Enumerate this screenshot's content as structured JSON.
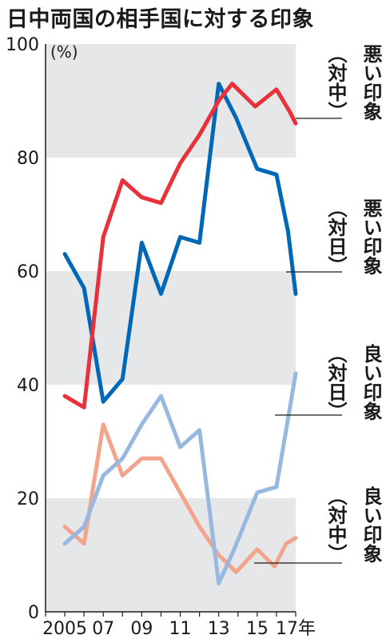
{
  "title": "日中両国の相手国に対する印象",
  "chart_data": {
    "type": "line",
    "title": "日中両国の相手国に対する印象",
    "unit": "(%)",
    "ylim": [
      0,
      100
    ],
    "yticks": [
      0,
      20,
      40,
      60,
      80,
      100
    ],
    "xlim": [
      2004,
      2017
    ],
    "x": [
      2005,
      2006,
      2007,
      2008,
      2009,
      2010,
      2011,
      2012,
      2013,
      2014,
      2015,
      2016,
      2017
    ],
    "xtick_labels": [
      {
        "x": 2005,
        "label": "2005"
      },
      {
        "x": 2007,
        "label": "07"
      },
      {
        "x": 2009,
        "label": "09"
      },
      {
        "x": 2011,
        "label": "11"
      },
      {
        "x": 2013,
        "label": "13"
      },
      {
        "x": 2015,
        "label": "15"
      },
      {
        "x": 2017,
        "label": "17年"
      }
    ],
    "grid": "alternating gray bands",
    "series": [
      {
        "name": "悪い印象（対中）",
        "key": "bad_china",
        "color": "#e8313a",
        "values": [
          38,
          36,
          66,
          76,
          73,
          72,
          79,
          84,
          90,
          93,
          89,
          92,
          88,
          86
        ],
        "x": [
          2005,
          2006,
          2007,
          2008,
          2009,
          2010,
          2011,
          2012,
          2013,
          2013.7,
          2014.9,
          2016,
          2016.7,
          2017
        ]
      },
      {
        "name": "悪い印象（対日）",
        "key": "bad_japan",
        "color": "#0068b7",
        "values": [
          63,
          57,
          37,
          41,
          65,
          56,
          66,
          65,
          93,
          87,
          78,
          77,
          67,
          56
        ],
        "x": [
          2005,
          2006,
          2007,
          2008,
          2009,
          2010,
          2011,
          2012,
          2013,
          2013.9,
          2015,
          2016,
          2016.6,
          2017
        ]
      },
      {
        "name": "良い印象（対日）",
        "key": "good_japan",
        "color": "#99b8e0",
        "values": [
          12,
          15,
          24,
          27,
          33,
          38,
          29,
          32,
          5,
          11,
          21,
          22,
          32,
          42
        ],
        "x": [
          2005,
          2006,
          2007,
          2008,
          2009,
          2010,
          2011,
          2012,
          2013,
          2013.8,
          2015,
          2016,
          2016.5,
          2017
        ]
      },
      {
        "name": "良い印象（対中）",
        "key": "good_china",
        "color": "#f3a48d",
        "values": [
          15,
          12,
          33,
          24,
          27,
          27,
          21,
          15,
          10,
          7,
          11,
          8,
          12,
          13
        ],
        "x": [
          2005,
          2006,
          2007,
          2008,
          2009,
          2010,
          2011,
          2012,
          2013,
          2013.9,
          2015,
          2015.9,
          2016.5,
          2017
        ]
      }
    ],
    "labels": [
      {
        "series": "bad_china",
        "top": "悪い印象",
        "paren": "（対中）"
      },
      {
        "series": "bad_japan",
        "top": "悪い印象",
        "paren": "（対日）"
      },
      {
        "series": "good_japan",
        "top": "良い印象",
        "paren": "（対日）"
      },
      {
        "series": "good_china",
        "top": "良い印象",
        "paren": "（対中）"
      }
    ],
    "colors": {
      "band": "#e6e7e9",
      "axis": "#1a1a1a",
      "leader": "#1a1a1a"
    }
  }
}
